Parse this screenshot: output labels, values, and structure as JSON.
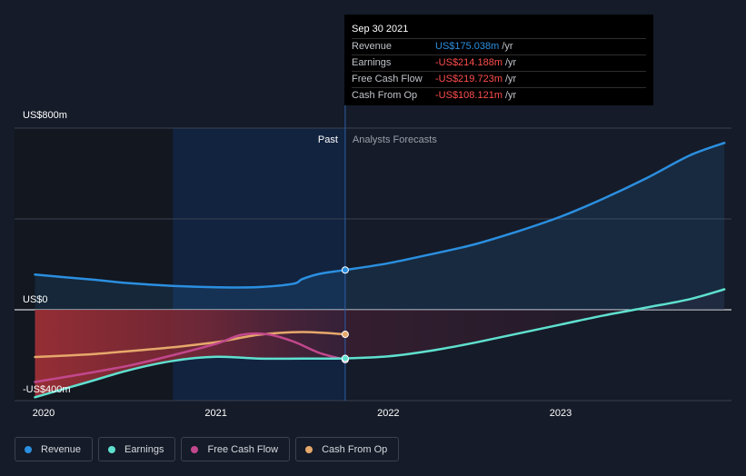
{
  "chart_data": {
    "type": "line",
    "title": "",
    "y_axis_labels": [
      "US$800m",
      "US$0",
      "-US$400m"
    ],
    "ylim": [
      -400,
      800
    ],
    "x_ticks": [
      "2020",
      "2021",
      "2022",
      "2023"
    ],
    "x_range": [
      2020.0,
      2023.95
    ],
    "divider_x": 2021.75,
    "highlight_range": [
      2020.75,
      2021.75
    ],
    "past_label": "Past",
    "forecast_label": "Analysts Forecasts",
    "series": [
      {
        "name": "Revenue",
        "color": "#2b8fe0",
        "fill": true,
        "points": [
          [
            2019.95,
            155
          ],
          [
            2020.25,
            135
          ],
          [
            2020.5,
            117
          ],
          [
            2020.75,
            105
          ],
          [
            2021.0,
            99
          ],
          [
            2021.25,
            100
          ],
          [
            2021.45,
            115
          ],
          [
            2021.5,
            135
          ],
          [
            2021.6,
            158
          ],
          [
            2021.75,
            175.038
          ],
          [
            2022.0,
            205
          ],
          [
            2022.25,
            245
          ],
          [
            2022.5,
            288
          ],
          [
            2022.75,
            345
          ],
          [
            2023.0,
            410
          ],
          [
            2023.25,
            490
          ],
          [
            2023.5,
            580
          ],
          [
            2023.75,
            680
          ],
          [
            2023.95,
            735
          ]
        ]
      },
      {
        "name": "Earnings",
        "color": "#5fe0cf",
        "points": [
          [
            2019.95,
            -385
          ],
          [
            2020.25,
            -320
          ],
          [
            2020.5,
            -265
          ],
          [
            2020.75,
            -225
          ],
          [
            2021.0,
            -207
          ],
          [
            2021.25,
            -215
          ],
          [
            2021.5,
            -215
          ],
          [
            2021.75,
            -214.188
          ],
          [
            2022.0,
            -205
          ],
          [
            2022.25,
            -180
          ],
          [
            2022.5,
            -145
          ],
          [
            2022.75,
            -105
          ],
          [
            2023.0,
            -65
          ],
          [
            2023.25,
            -25
          ],
          [
            2023.5,
            10
          ],
          [
            2023.75,
            47
          ],
          [
            2023.95,
            90
          ]
        ]
      },
      {
        "name": "Free Cash Flow",
        "color": "#c2488d",
        "points": [
          [
            2019.95,
            -318
          ],
          [
            2020.25,
            -280
          ],
          [
            2020.5,
            -245
          ],
          [
            2020.75,
            -200
          ],
          [
            2021.0,
            -150
          ],
          [
            2021.15,
            -110
          ],
          [
            2021.3,
            -108
          ],
          [
            2021.45,
            -140
          ],
          [
            2021.6,
            -190
          ],
          [
            2021.75,
            -219.723
          ]
        ]
      },
      {
        "name": "Cash From Op",
        "color": "#e6a86b",
        "points": [
          [
            2019.95,
            -208
          ],
          [
            2020.25,
            -197
          ],
          [
            2020.5,
            -182
          ],
          [
            2020.75,
            -165
          ],
          [
            2021.0,
            -143
          ],
          [
            2021.25,
            -110
          ],
          [
            2021.5,
            -98
          ],
          [
            2021.75,
            -108.121
          ]
        ]
      }
    ]
  },
  "tooltip": {
    "date": "Sep 30 2021",
    "rows": [
      {
        "label": "Revenue",
        "value": "US$175.038m",
        "unit": "/yr",
        "color": "#2b8fe0"
      },
      {
        "label": "Earnings",
        "value": "-US$214.188m",
        "unit": "/yr",
        "color": "#ff4d4d"
      },
      {
        "label": "Free Cash Flow",
        "value": "-US$219.723m",
        "unit": "/yr",
        "color": "#ff4d4d"
      },
      {
        "label": "Cash From Op",
        "value": "-US$108.121m",
        "unit": "/yr",
        "color": "#ff4d4d"
      }
    ]
  },
  "legend": [
    {
      "label": "Revenue",
      "color": "#2b8fe0"
    },
    {
      "label": "Earnings",
      "color": "#5fe0cf"
    },
    {
      "label": "Free Cash Flow",
      "color": "#c2488d"
    },
    {
      "label": "Cash From Op",
      "color": "#e6a86b"
    }
  ]
}
